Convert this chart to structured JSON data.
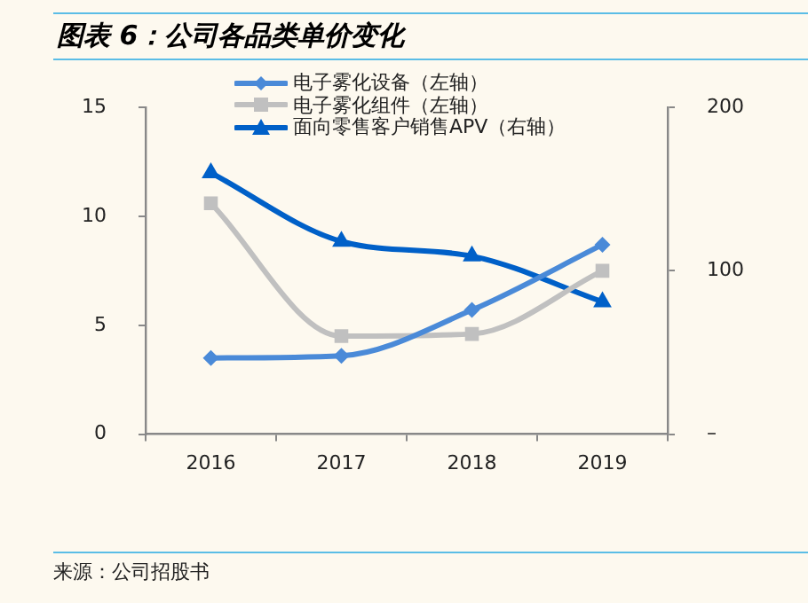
{
  "chart_data": {
    "type": "line",
    "title": "图表 6：公司各品类单价变化",
    "categories": [
      "2016",
      "2017",
      "2018",
      "2019"
    ],
    "series": [
      {
        "name": "电子雾化设备（左轴）",
        "color": "#4a8ad8",
        "marker": "diamond",
        "values": [
          3.5,
          3.6,
          5.7,
          8.7
        ]
      },
      {
        "name": "电子雾化组件（左轴）",
        "color": "#c0c0c0",
        "marker": "square",
        "values": [
          10.6,
          4.5,
          4.6,
          7.5
        ]
      },
      {
        "name": "面向零售客户销售APV（右轴）",
        "color": "#0060c8",
        "marker": "triangle",
        "axis": "y2",
        "values": [
          160,
          118,
          109,
          81
        ]
      }
    ],
    "ylim": [
      0,
      15
    ],
    "yticks": [
      0,
      5,
      10,
      15
    ],
    "y2lim": [
      0,
      200
    ],
    "y2ticks": [
      {
        "value": 0,
        "label": "–"
      },
      100,
      200
    ],
    "grid": false,
    "legend": "top",
    "annotations": [
      "来源：公司招股书"
    ]
  }
}
